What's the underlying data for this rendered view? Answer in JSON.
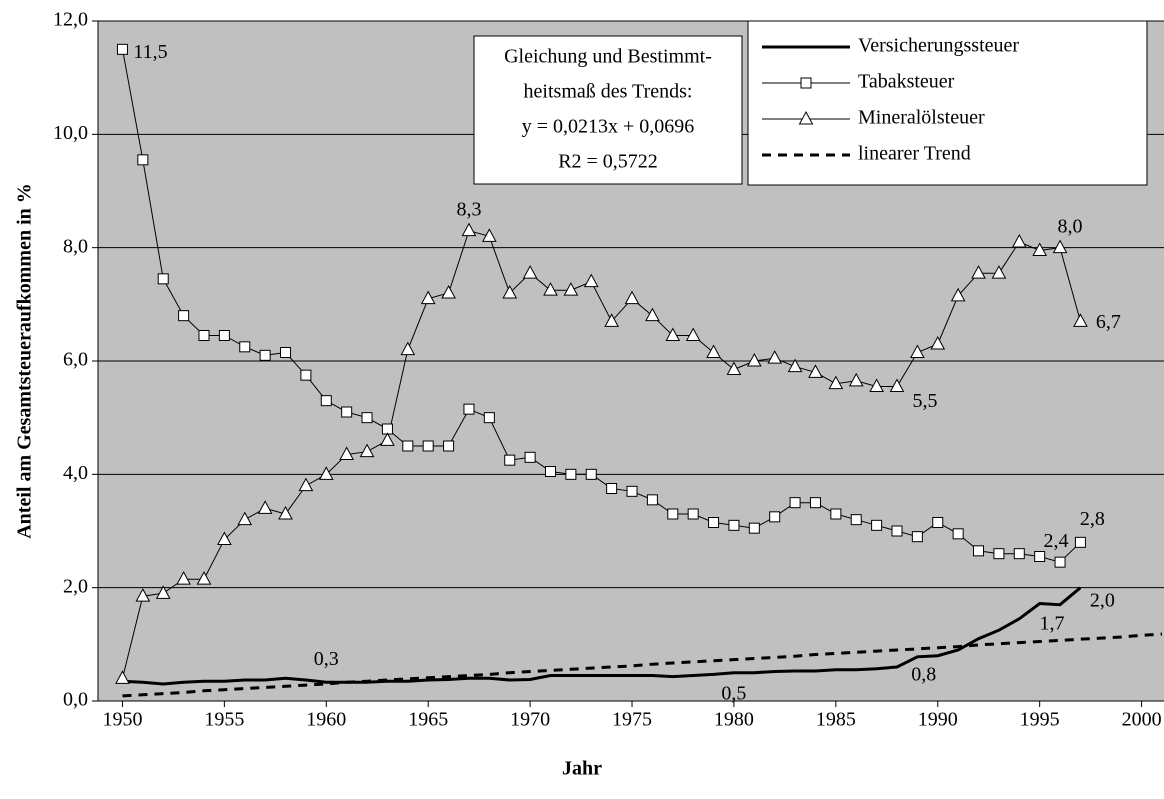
{
  "chart_data": {
    "type": "line",
    "xlabel": "Jahr",
    "ylabel": "Anteil am Gesamtsteueraufkommen in %",
    "annotation": [
      "Gleichung und Bestimmt-",
      "heitsmaß des Trends:",
      "y = 0,0213x + 0,0696",
      "R2 = 0,5722"
    ],
    "x": [
      1950,
      1951,
      1952,
      1953,
      1954,
      1955,
      1956,
      1957,
      1958,
      1959,
      1960,
      1961,
      1962,
      1963,
      1964,
      1965,
      1966,
      1967,
      1968,
      1969,
      1970,
      1971,
      1972,
      1973,
      1974,
      1975,
      1976,
      1977,
      1978,
      1979,
      1980,
      1981,
      1982,
      1983,
      1984,
      1985,
      1986,
      1987,
      1988,
      1989,
      1990,
      1991,
      1992,
      1993,
      1994,
      1995,
      1996,
      1997,
      1998,
      1999,
      2000,
      2001
    ],
    "xlim": [
      1948.8,
      2001.1
    ],
    "xticks": [
      1950,
      1955,
      1960,
      1965,
      1970,
      1975,
      1980,
      1985,
      1990,
      1995,
      2000
    ],
    "ylim": [
      0,
      12
    ],
    "yticks": [
      {
        "value": 0,
        "label": "0,0"
      },
      {
        "value": 2,
        "label": "2,0"
      },
      {
        "value": 4,
        "label": "4,0"
      },
      {
        "value": 6,
        "label": "6,0"
      },
      {
        "value": 8,
        "label": "8,0"
      },
      {
        "value": 10,
        "label": "10,0"
      },
      {
        "value": 12,
        "label": "12,0"
      }
    ],
    "grid": true,
    "background": "#c0c0c0",
    "legend": "top-right",
    "series": [
      {
        "name": "Versicherungssteuer",
        "color": "#000000",
        "linewidth": 3,
        "marker": null,
        "linestyle": "solid",
        "values": [
          0.35,
          0.33,
          0.3,
          0.33,
          0.35,
          0.35,
          0.37,
          0.37,
          0.4,
          0.37,
          0.33,
          0.33,
          0.33,
          0.35,
          0.35,
          0.37,
          0.38,
          0.4,
          0.4,
          0.37,
          0.38,
          0.45,
          0.45,
          0.45,
          0.45,
          0.45,
          0.45,
          0.43,
          0.45,
          0.47,
          0.5,
          0.5,
          0.52,
          0.53,
          0.53,
          0.55,
          0.55,
          0.57,
          0.6,
          0.78,
          0.8,
          0.9,
          1.1,
          1.25,
          1.45,
          1.72,
          1.7,
          2.0,
          null,
          null,
          null,
          null
        ],
        "value_labels": [
          null,
          null,
          null,
          null,
          null,
          null,
          null,
          null,
          null,
          null,
          "0,3",
          null,
          null,
          null,
          null,
          null,
          null,
          null,
          null,
          null,
          null,
          null,
          null,
          null,
          null,
          null,
          null,
          null,
          null,
          null,
          "0,5",
          null,
          null,
          null,
          null,
          null,
          null,
          null,
          null,
          null,
          "0,8",
          null,
          null,
          null,
          null,
          null,
          "1,7",
          "2,0",
          null,
          null,
          null,
          null
        ]
      },
      {
        "name": "Tabaksteuer",
        "color": "#000000",
        "linewidth": 1,
        "marker": "square",
        "linestyle": "solid",
        "values": [
          11.5,
          9.55,
          7.45,
          6.8,
          6.45,
          6.45,
          6.25,
          6.1,
          6.15,
          5.75,
          5.3,
          5.1,
          5.0,
          4.8,
          4.5,
          4.5,
          4.5,
          5.15,
          5.0,
          4.25,
          4.3,
          4.05,
          4.0,
          4.0,
          3.75,
          3.7,
          3.55,
          3.3,
          3.3,
          3.15,
          3.1,
          3.05,
          3.25,
          3.5,
          3.5,
          3.3,
          3.2,
          3.1,
          3.0,
          2.9,
          3.15,
          2.95,
          2.65,
          2.6,
          2.6,
          2.55,
          2.45,
          2.8,
          null,
          null,
          null,
          null
        ],
        "value_labels": [
          "11,5",
          null,
          null,
          null,
          null,
          null,
          null,
          null,
          null,
          null,
          null,
          null,
          null,
          null,
          null,
          null,
          null,
          null,
          null,
          null,
          null,
          null,
          null,
          null,
          null,
          null,
          null,
          null,
          null,
          null,
          null,
          null,
          null,
          null,
          null,
          null,
          null,
          null,
          null,
          null,
          null,
          null,
          null,
          null,
          null,
          null,
          "2,4",
          "2,8",
          null,
          null,
          null,
          null
        ]
      },
      {
        "name": "Mineralölsteuer",
        "color": "#000000",
        "linewidth": 1,
        "marker": "triangle",
        "linestyle": "solid",
        "values": [
          0.4,
          1.85,
          1.9,
          2.15,
          2.15,
          2.85,
          3.2,
          3.4,
          3.3,
          3.8,
          4.0,
          4.35,
          4.4,
          4.6,
          6.2,
          7.1,
          7.2,
          8.3,
          8.2,
          7.2,
          7.55,
          7.25,
          7.25,
          7.4,
          6.7,
          7.1,
          6.8,
          6.45,
          6.45,
          6.15,
          5.85,
          6.0,
          6.05,
          5.9,
          5.8,
          5.6,
          5.65,
          5.55,
          5.55,
          6.15,
          6.3,
          7.15,
          7.55,
          7.55,
          8.1,
          7.95,
          8.0,
          6.7,
          null,
          null,
          null,
          null
        ],
        "value_labels": [
          null,
          null,
          null,
          null,
          null,
          null,
          null,
          null,
          null,
          null,
          null,
          null,
          null,
          null,
          null,
          null,
          null,
          "8,3",
          null,
          null,
          null,
          null,
          null,
          null,
          null,
          null,
          null,
          null,
          null,
          null,
          null,
          null,
          null,
          null,
          null,
          null,
          null,
          null,
          "5,5",
          null,
          null,
          null,
          null,
          null,
          null,
          null,
          "8,0",
          "6,7",
          null,
          null,
          null,
          null
        ]
      },
      {
        "name": "linearer Trend",
        "color": "#000000",
        "linewidth": 3,
        "marker": null,
        "linestyle": "dashed",
        "values": [
          0.09,
          0.11,
          0.13,
          0.15,
          0.18,
          0.2,
          0.22,
          0.24,
          0.26,
          0.28,
          0.3,
          0.33,
          0.35,
          0.37,
          0.39,
          0.41,
          0.43,
          0.45,
          0.47,
          0.5,
          0.52,
          0.54,
          0.56,
          0.58,
          0.6,
          0.62,
          0.65,
          0.67,
          0.69,
          0.71,
          0.73,
          0.75,
          0.77,
          0.79,
          0.82,
          0.84,
          0.86,
          0.88,
          0.9,
          0.92,
          0.94,
          0.96,
          0.99,
          1.01,
          1.03,
          1.05,
          1.07,
          1.09,
          1.11,
          1.13,
          1.16,
          1.18
        ]
      }
    ]
  }
}
